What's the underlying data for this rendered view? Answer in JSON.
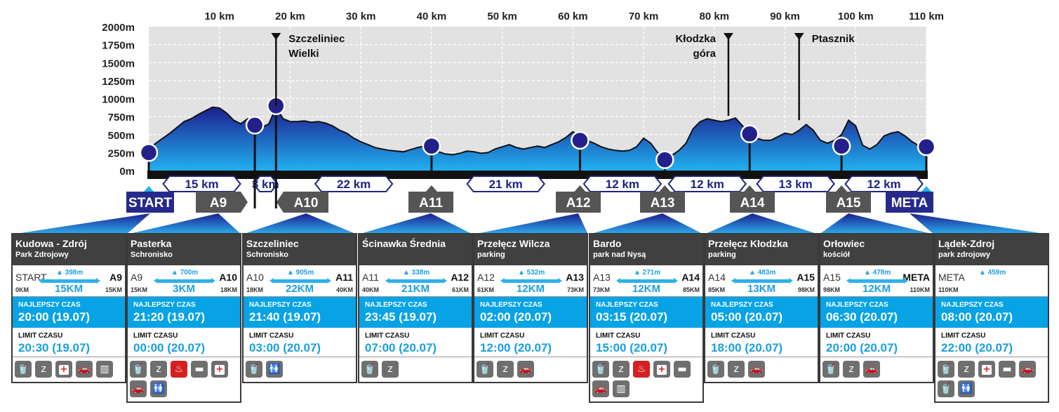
{
  "chart_data": {
    "type": "area",
    "x_ticks": [
      "10 km",
      "20 km",
      "30 km",
      "40 km",
      "50 km",
      "60 km",
      "70 km",
      "80 km",
      "90 km",
      "100 km",
      "110 km"
    ],
    "y_ticks": [
      "2000m",
      "1750m",
      "1500m",
      "1250m",
      "1000m",
      "750m",
      "500m",
      "250m",
      "0m"
    ],
    "xlim": [
      0,
      110
    ],
    "ylim": [
      0,
      2000
    ],
    "profile": {
      "x": [
        0,
        1,
        2,
        3,
        4,
        5,
        6,
        7,
        8,
        9,
        10,
        11,
        12,
        13,
        14,
        15,
        16,
        17,
        18,
        19,
        20,
        21,
        22,
        23,
        24,
        25,
        26,
        27,
        28,
        29,
        30,
        31,
        32,
        33,
        34,
        35,
        36,
        37,
        38,
        39,
        40,
        41,
        42,
        43,
        44,
        45,
        46,
        47,
        48,
        49,
        50,
        51,
        52,
        53,
        54,
        55,
        56,
        57,
        58,
        59,
        60,
        61,
        62,
        63,
        64,
        65,
        66,
        67,
        68,
        69,
        70,
        71,
        72,
        73,
        74,
        75,
        76,
        77,
        78,
        79,
        80,
        81,
        82,
        83,
        84,
        85,
        86,
        87,
        88,
        89,
        90,
        91,
        92,
        93,
        94,
        95,
        96,
        97,
        98,
        99,
        100,
        101,
        102,
        103,
        104,
        105,
        106,
        107,
        108,
        109,
        110
      ],
      "elevation": [
        300,
        380,
        450,
        520,
        600,
        680,
        720,
        780,
        830,
        880,
        870,
        800,
        700,
        650,
        720,
        580,
        600,
        650,
        880,
        720,
        680,
        680,
        690,
        670,
        680,
        660,
        620,
        560,
        520,
        450,
        400,
        360,
        320,
        300,
        280,
        270,
        260,
        290,
        320,
        340,
        300,
        260,
        230,
        220,
        240,
        270,
        260,
        240,
        250,
        300,
        330,
        360,
        320,
        300,
        320,
        340,
        320,
        360,
        400,
        460,
        540,
        480,
        420,
        380,
        330,
        300,
        280,
        270,
        280,
        330,
        450,
        380,
        250,
        200,
        210,
        280,
        380,
        580,
        680,
        720,
        700,
        680,
        700,
        730,
        620,
        500,
        450,
        420,
        420,
        470,
        520,
        500,
        560,
        640,
        560,
        420,
        380,
        420,
        500,
        700,
        620,
        350,
        300,
        360,
        480,
        520,
        540,
        480,
        400,
        340,
        320
      ]
    },
    "checkpoints": [
      {
        "label": "START",
        "km": 0,
        "alt": 250
      },
      {
        "label": "A9",
        "km": 15,
        "alt": 630
      },
      {
        "label": "A10",
        "km": 18,
        "alt": 900
      },
      {
        "label": "A11",
        "km": 40,
        "alt": 340
      },
      {
        "label": "A12",
        "km": 61,
        "alt": 420
      },
      {
        "label": "A13",
        "km": 73,
        "alt": 150
      },
      {
        "label": "A14",
        "km": 85,
        "alt": 510
      },
      {
        "label": "A15",
        "km": 98,
        "alt": 340
      },
      {
        "label": "META",
        "km": 110,
        "alt": 330
      }
    ],
    "segments": [
      {
        "label": "15 km",
        "from": 0,
        "to": 15
      },
      {
        "label": "3 km",
        "from": 15,
        "to": 18
      },
      {
        "label": "22 km",
        "from": 18,
        "to": 40
      },
      {
        "label": "21 km",
        "from": 40,
        "to": 61
      },
      {
        "label": "12 km",
        "from": 61,
        "to": 73
      },
      {
        "label": "12 km",
        "from": 73,
        "to": 85
      },
      {
        "label": "13 km",
        "from": 85,
        "to": 98
      },
      {
        "label": "12 km",
        "from": 98,
        "to": 110
      }
    ],
    "peaks": [
      {
        "lines": [
          "Szczeliniec",
          "Wielki"
        ],
        "km": 18,
        "alt": 900,
        "side": "right"
      },
      {
        "lines": [
          "Kłodzka",
          "góra"
        ],
        "km": 82,
        "alt": 760,
        "side": "left"
      },
      {
        "lines": [
          "Ptasznik"
        ],
        "km": 92,
        "alt": 700,
        "side": "right"
      }
    ],
    "colors": {
      "area_top": "#1c1f8f",
      "area_bottom": "#21b0f0",
      "marker": "#23208a",
      "label_bg": "#555555",
      "start_bg": "#262a8c"
    }
  },
  "cards": [
    {
      "name": "Kudowa - Zdrój",
      "sub": "Park Zdrojowy",
      "from": "START",
      "to": "A9",
      "from_km": "0KM",
      "to_km": "15KM",
      "elev": "398m",
      "dist": "15KM",
      "best_label": "NAJLEPSZY CZAS",
      "best": "20:00 (19.07)",
      "limit_label": "LIMIT CZASU",
      "limit": "20:30 (19.07)",
      "icons": [
        [
          "drink-icon",
          "🥤"
        ],
        [
          "sleep-icon",
          "z"
        ],
        [
          "medical-icon",
          "+"
        ],
        [
          "car-icon",
          "🚗"
        ],
        [
          "luggage-icon",
          "▥"
        ]
      ]
    },
    {
      "name": "Pasterka",
      "sub": "Schronisko",
      "from": "A9",
      "to": "A10",
      "from_km": "15KM",
      "to_km": "18KM",
      "elev": "700m",
      "dist": "3KM",
      "best_label": "NAJLEPSZY CZAS",
      "best": "21:20 (19.07)",
      "limit_label": "LIMIT CZASU",
      "limit": "00:00 (20.07)",
      "icons": [
        [
          "drink-icon",
          "🥤"
        ],
        [
          "sleep-icon",
          "z"
        ],
        [
          "hot-food-icon",
          "♨"
        ],
        [
          "bed-icon",
          "▬"
        ],
        [
          "medical-icon",
          "+"
        ],
        [
          "car-icon",
          "🚗"
        ],
        [
          "toilet-icon",
          "🚻"
        ]
      ]
    },
    {
      "name": "Szczeliniec",
      "sub": "Schronisko",
      "from": "A10",
      "to": "A11",
      "from_km": "18KM",
      "to_km": "40KM",
      "elev": "905m",
      "dist": "22KM",
      "best_label": "NAJLEPSZY CZAS",
      "best": "21:40 (19.07)",
      "limit_label": "LIMIT CZASU",
      "limit": "03:00 (20.07)",
      "icons": [
        [
          "drink-icon",
          "🥤"
        ],
        [
          "toilet-icon",
          "🚻"
        ]
      ]
    },
    {
      "name": "Ścinawka Średnia",
      "sub": "",
      "from": "A11",
      "to": "A12",
      "from_km": "40KM",
      "to_km": "61KM",
      "elev": "338m",
      "dist": "21KM",
      "best_label": "NAJLEPSZY CZAS",
      "best": "23:45 (19.07)",
      "limit_label": "LIMIT CZASU",
      "limit": "07:00 (20.07)",
      "icons": [
        [
          "drink-icon",
          "🥤"
        ],
        [
          "sleep-icon",
          "z"
        ]
      ]
    },
    {
      "name": "Przełęcz Wilcza",
      "sub": "parking",
      "from": "A12",
      "to": "A13",
      "from_km": "61KM",
      "to_km": "73KM",
      "elev": "532m",
      "dist": "12KM",
      "best_label": "NAJLEPSZY CZAS",
      "best": "02:00 (20.07)",
      "limit_label": "LIMIT CZASU",
      "limit": "12:00 (20.07)",
      "icons": [
        [
          "drink-icon",
          "🥤"
        ],
        [
          "sleep-icon",
          "z"
        ],
        [
          "car-icon",
          "🚗"
        ]
      ]
    },
    {
      "name": "Bardo",
      "sub": "park nad Nysą",
      "from": "A13",
      "to": "A14",
      "from_km": "73KM",
      "to_km": "85KM",
      "elev": "271m",
      "dist": "12KM",
      "best_label": "NAJLEPSZY CZAS",
      "best": "03:15 (20.07)",
      "limit_label": "LIMIT CZASU",
      "limit": "15:00 (20.07)",
      "icons": [
        [
          "drink-icon",
          "🥤"
        ],
        [
          "sleep-icon",
          "z"
        ],
        [
          "hot-food-icon",
          "♨"
        ],
        [
          "medical-icon",
          "+"
        ],
        [
          "bed-icon",
          "▬"
        ],
        [
          "car-icon",
          "🚗"
        ],
        [
          "luggage-icon",
          "▥"
        ]
      ]
    },
    {
      "name": "Przełęcz Kłodzka",
      "sub": "parking",
      "from": "A14",
      "to": "A15",
      "from_km": "85KM",
      "to_km": "98KM",
      "elev": "483m",
      "dist": "13KM",
      "best_label": "NAJLEPSZY CZAS",
      "best": "05:00 (20.07)",
      "limit_label": "LIMIT CZASU",
      "limit": "18:00 (20.07)",
      "icons": [
        [
          "drink-icon",
          "🥤"
        ],
        [
          "sleep-icon",
          "z"
        ],
        [
          "car-icon",
          "🚗"
        ]
      ]
    },
    {
      "name": "Orłowiec",
      "sub": "kościół",
      "from": "A15",
      "to": "META",
      "from_km": "98KM",
      "to_km": "110KM",
      "elev": "478m",
      "dist": "12KM",
      "best_label": "NAJLEPSZY CZAS",
      "best": "06:30 (20.07)",
      "limit_label": "LIMIT CZASU",
      "limit": "20:00 (20.07)",
      "icons": [
        [
          "drink-icon",
          "🥤"
        ],
        [
          "sleep-icon",
          "z"
        ],
        [
          "car-icon",
          "🚗"
        ]
      ]
    },
    {
      "name": "Lądek-Zdroj",
      "sub": "park zdrojowy",
      "from": "META",
      "to": "",
      "from_km": "110KM",
      "to_km": "",
      "elev": "459m",
      "dist": "",
      "best_label": "NAJLEPSZY CZAS",
      "best": "08:00 (20.07)",
      "limit_label": "LIMIT CZASU",
      "limit": "22:00 (20.07)",
      "icons": [
        [
          "drink-icon",
          "🥤"
        ],
        [
          "sleep-icon",
          "z"
        ],
        [
          "medical-icon",
          "+"
        ],
        [
          "bed-icon",
          "▬"
        ],
        [
          "car-icon",
          "🚗"
        ],
        [
          "drink-icon",
          "🥤"
        ],
        [
          "toilet-icon",
          "🚻"
        ]
      ]
    }
  ]
}
